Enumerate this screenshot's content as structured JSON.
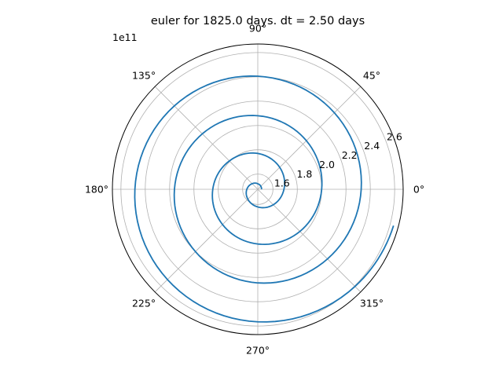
{
  "chart_data": {
    "type": "line",
    "projection": "polar",
    "title": "euler for 1825.0 days. dt = 2.50 days",
    "r_offset_label": "1e11",
    "theta_ticks": [
      {
        "deg": 0,
        "label": "0°"
      },
      {
        "deg": 45,
        "label": "45°"
      },
      {
        "deg": 90,
        "label": "90°"
      },
      {
        "deg": 135,
        "label": "135°"
      },
      {
        "deg": 180,
        "label": "180°"
      },
      {
        "deg": 225,
        "label": "225°"
      },
      {
        "deg": 270,
        "label": "270°"
      },
      {
        "deg": 315,
        "label": "315°"
      }
    ],
    "r_ticks": [
      {
        "value": 1.6,
        "label": "1.6"
      },
      {
        "value": 1.8,
        "label": "1.8"
      },
      {
        "value": 2.0,
        "label": "2.0"
      },
      {
        "value": 2.2,
        "label": "2.2"
      },
      {
        "value": 2.4,
        "label": "2.4"
      },
      {
        "value": 2.6,
        "label": "2.6"
      }
    ],
    "rlim": [
      1.475,
      2.67
    ],
    "grid": true,
    "series": [
      {
        "color": "#1f77b4",
        "theta_deg": [
          0,
          45,
          90,
          135,
          180,
          225,
          270,
          315,
          360,
          405,
          450,
          495,
          540,
          585,
          630,
          675,
          720,
          765,
          810,
          855,
          900,
          945,
          990,
          1035,
          1080,
          1125,
          1170,
          1215,
          1260,
          1305,
          1350,
          1395,
          1425
        ],
        "r": [
          1.505,
          1.51,
          1.52,
          1.54,
          1.565,
          1.59,
          1.62,
          1.655,
          1.69,
          1.73,
          1.77,
          1.805,
          1.845,
          1.885,
          1.925,
          1.965,
          2.0,
          2.04,
          2.08,
          2.12,
          2.16,
          2.2,
          2.245,
          2.285,
          2.325,
          2.365,
          2.405,
          2.445,
          2.485,
          2.525,
          2.565,
          2.605,
          2.63
        ]
      }
    ]
  }
}
